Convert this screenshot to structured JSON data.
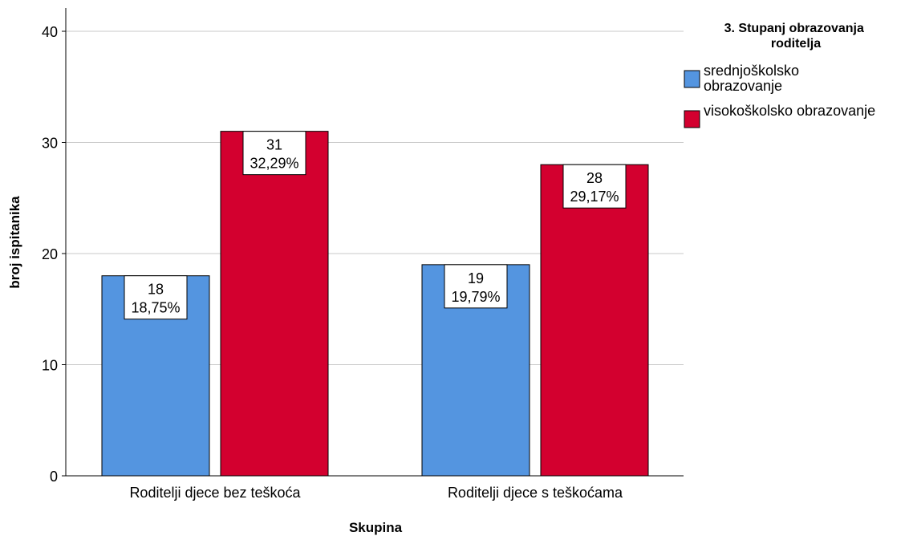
{
  "chart_data": {
    "type": "bar",
    "xlabel": "Skupina",
    "ylabel": "broj ispitanika",
    "ylim": [
      0,
      42
    ],
    "yticks": [
      "0",
      "10",
      "20",
      "30",
      "40"
    ],
    "grid": true,
    "legend_position": "top-right",
    "categories": [
      "Roditelji djece bez teškoća",
      "Roditelji djece s teškoćama"
    ],
    "legend_title": "3. Stupanj obrazovanja roditelja",
    "series": [
      {
        "name": "srednjoškolsko obrazovanje",
        "name_lines": [
          "srednjoškolsko",
          "obrazovanje"
        ],
        "color": "#5495e0",
        "values": [
          18,
          19
        ],
        "count_labels": [
          "18",
          "19"
        ],
        "percent_labels": [
          "18,75%",
          "19,79%"
        ]
      },
      {
        "name": "visokoškolsko obrazovanje",
        "name_lines": [
          "visokoškolsko obrazovanje"
        ],
        "color": "#d3002f",
        "values": [
          31,
          28
        ],
        "count_labels": [
          "31",
          "28"
        ],
        "percent_labels": [
          "32,29%",
          "29,17%"
        ]
      }
    ]
  }
}
